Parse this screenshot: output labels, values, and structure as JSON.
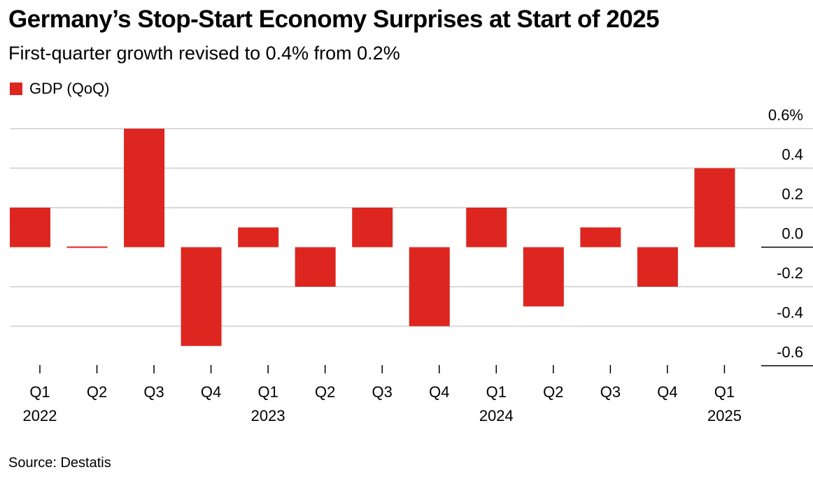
{
  "title": "Germany’s Stop-Start Economy Surprises at Start of 2025",
  "subtitle": "First-quarter growth revised to 0.4% from 0.2%",
  "source": "Source: Destatis",
  "colors": {
    "bar": "#dd2620",
    "grid": "#d9d9d9",
    "axis": "#000000"
  },
  "chart_data": {
    "type": "bar",
    "categories": [
      "Q1 2022",
      "Q2 2022",
      "Q3 2022",
      "Q4 2022",
      "Q1 2023",
      "Q2 2023",
      "Q3 2023",
      "Q4 2023",
      "Q1 2024",
      "Q2 2024",
      "Q3 2024",
      "Q4 2024",
      "Q1 2025"
    ],
    "tick_labels": [
      {
        "quarter": "Q1",
        "year": "2022"
      },
      {
        "quarter": "Q2",
        "year": ""
      },
      {
        "quarter": "Q3",
        "year": ""
      },
      {
        "quarter": "Q4",
        "year": ""
      },
      {
        "quarter": "Q1",
        "year": "2023"
      },
      {
        "quarter": "Q2",
        "year": ""
      },
      {
        "quarter": "Q3",
        "year": ""
      },
      {
        "quarter": "Q4",
        "year": ""
      },
      {
        "quarter": "Q1",
        "year": "2024"
      },
      {
        "quarter": "Q2",
        "year": ""
      },
      {
        "quarter": "Q3",
        "year": ""
      },
      {
        "quarter": "Q4",
        "year": ""
      },
      {
        "quarter": "Q1",
        "year": "2025"
      }
    ],
    "series": [
      {
        "name": "GDP (QoQ)",
        "values": [
          0.2,
          0.0,
          0.6,
          -0.5,
          0.1,
          -0.2,
          0.2,
          -0.4,
          0.2,
          -0.3,
          0.1,
          -0.2,
          0.4
        ]
      }
    ],
    "ylim": [
      -0.6,
      0.6
    ],
    "yticks": [
      0.6,
      0.4,
      0.2,
      0.0,
      -0.2,
      -0.4,
      -0.6
    ],
    "ytick_labels": [
      "0.6%",
      "0.4",
      "0.2",
      "0.0",
      "-0.2",
      "-0.4",
      "-0.6"
    ],
    "y_axis_position": "right",
    "legend_position": "top-left",
    "grid": true
  }
}
